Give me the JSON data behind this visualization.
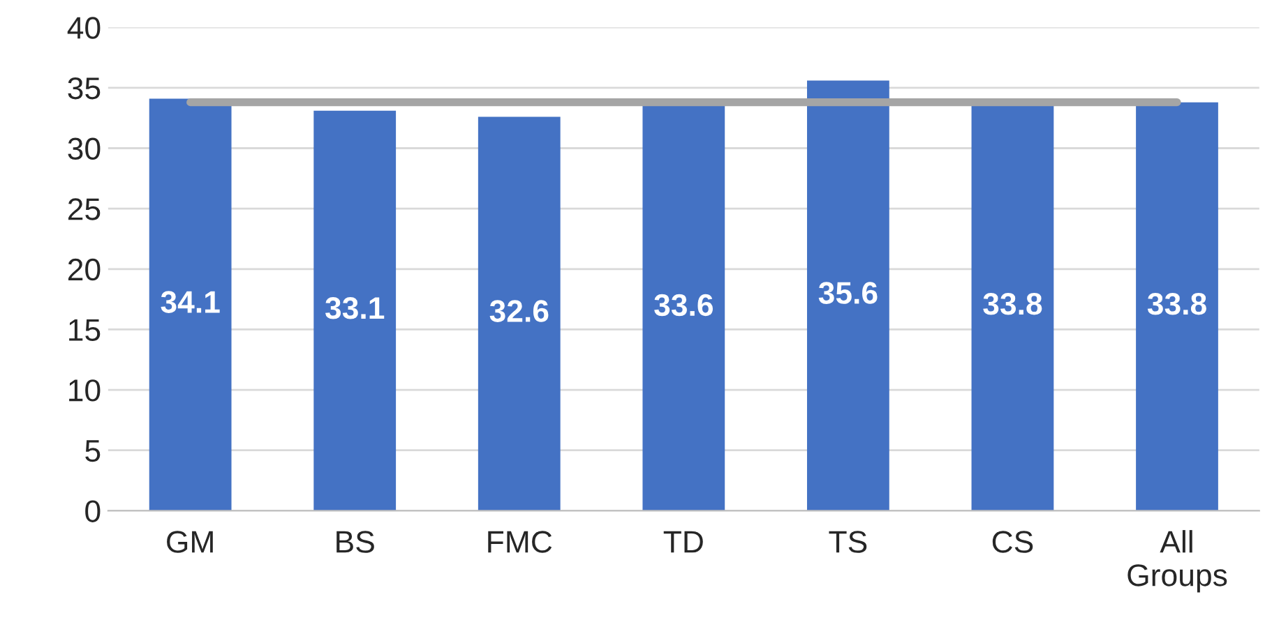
{
  "chart_data": {
    "type": "bar",
    "categories": [
      "GM",
      "BS",
      "FMC",
      "TD",
      "TS",
      "CS",
      "All\nGroups"
    ],
    "series": [
      {
        "type": "bar",
        "color": "#4472c4",
        "values": [
          34.1,
          33.1,
          32.6,
          33.6,
          35.6,
          33.8,
          33.8
        ],
        "value_labels": [
          "34.1",
          "33.1",
          "32.6",
          "33.6",
          "35.6",
          "33.8",
          "33.8"
        ]
      },
      {
        "type": "line",
        "color": "#a5a5a5",
        "values": [
          33.8,
          33.8,
          33.8,
          33.8,
          33.8,
          33.8,
          33.8
        ]
      }
    ],
    "ylim": [
      0,
      40
    ],
    "yticks": [
      0,
      5,
      10,
      15,
      20,
      25,
      30,
      35,
      40
    ],
    "grid": "y",
    "legend": false,
    "marker": "none",
    "line_style": "solid"
  }
}
